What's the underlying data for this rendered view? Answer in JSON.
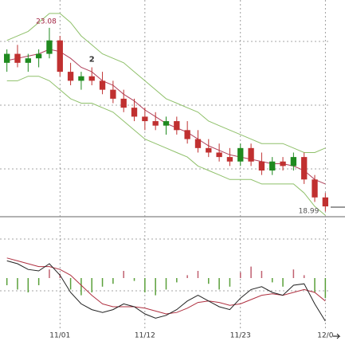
{
  "chart_data": [
    {
      "type": "candlestick",
      "categories": [
        null,
        null,
        null,
        null,
        null,
        "11/01",
        null,
        null,
        null,
        null,
        null,
        null,
        null,
        "11/12",
        null,
        null,
        null,
        null,
        null,
        null,
        null,
        null,
        "11/23",
        null,
        null,
        null,
        null,
        null,
        null,
        null,
        "12/0"
      ],
      "open": [
        22.3,
        22.5,
        22.3,
        22.4,
        22.5,
        22.8,
        22.1,
        21.9,
        22.0,
        21.9,
        21.7,
        21.5,
        21.3,
        21.1,
        21.0,
        20.9,
        21.0,
        20.8,
        20.6,
        20.4,
        20.3,
        20.2,
        20.1,
        20.4,
        20.1,
        19.9,
        20.1,
        20.0,
        20.2,
        19.7,
        19.3
      ],
      "high": [
        22.6,
        22.7,
        22.5,
        22.6,
        23.08,
        22.9,
        22.3,
        22.1,
        22.2,
        22.1,
        21.9,
        21.7,
        21.5,
        21.3,
        21.2,
        21.1,
        21.1,
        21.0,
        20.8,
        20.6,
        20.5,
        20.4,
        20.5,
        20.5,
        20.3,
        20.2,
        20.2,
        20.3,
        20.3,
        19.8,
        19.4
      ],
      "low": [
        22.1,
        22.2,
        22.1,
        22.2,
        22.4,
        22.0,
        21.8,
        21.7,
        21.8,
        21.6,
        21.4,
        21.2,
        21.0,
        20.8,
        20.8,
        20.7,
        20.7,
        20.5,
        20.3,
        20.2,
        20.1,
        20.0,
        20.0,
        20.0,
        19.8,
        19.8,
        19.9,
        19.9,
        19.6,
        19.2,
        18.99
      ],
      "close": [
        22.5,
        22.3,
        22.4,
        22.5,
        22.8,
        22.1,
        21.9,
        22.0,
        21.9,
        21.7,
        21.5,
        21.3,
        21.1,
        21.0,
        20.9,
        21.0,
        20.8,
        20.6,
        20.4,
        20.3,
        20.2,
        20.1,
        20.4,
        20.1,
        19.9,
        20.1,
        20.0,
        20.2,
        19.7,
        19.3,
        19.1
      ],
      "upper": [
        22.8,
        22.9,
        23.0,
        23.2,
        23.4,
        23.4,
        23.2,
        22.9,
        22.7,
        22.5,
        22.4,
        22.3,
        22.1,
        21.9,
        21.7,
        21.5,
        21.4,
        21.3,
        21.2,
        21.0,
        20.9,
        20.8,
        20.7,
        20.6,
        20.5,
        20.5,
        20.5,
        20.4,
        20.3,
        20.3,
        20.4
      ],
      "lower": [
        21.9,
        21.9,
        22.0,
        22.0,
        21.9,
        21.7,
        21.5,
        21.4,
        21.4,
        21.3,
        21.2,
        21.0,
        20.8,
        20.6,
        20.5,
        20.4,
        20.3,
        20.2,
        20.0,
        19.9,
        19.8,
        19.7,
        19.7,
        19.7,
        19.6,
        19.6,
        19.6,
        19.6,
        19.4,
        19.1,
        18.9
      ],
      "average": [
        22.35,
        22.4,
        22.45,
        22.5,
        22.6,
        22.55,
        22.4,
        22.2,
        22.1,
        21.9,
        21.8,
        21.6,
        21.45,
        21.25,
        21.1,
        20.95,
        20.85,
        20.75,
        20.6,
        20.45,
        20.35,
        20.25,
        20.2,
        20.15,
        20.1,
        20.05,
        20.05,
        20.0,
        19.9,
        19.7,
        19.6
      ],
      "annotation": "2",
      "up_color": "#1f8a1f",
      "down_color": "#c03030",
      "band_color": "#8fc06a",
      "average_color": "#b0405a",
      "ylim": [
        18.87,
        23.7
      ]
    },
    {
      "type": "macd",
      "histogram": [
        -0.05,
        -0.08,
        -0.1,
        -0.05,
        0.06,
        0.03,
        -0.08,
        -0.12,
        -0.1,
        -0.06,
        -0.04,
        0.05,
        -0.02,
        -0.1,
        -0.12,
        -0.08,
        -0.03,
        0.02,
        0.05,
        -0.04,
        -0.08,
        -0.06,
        0.04,
        0.08,
        0.05,
        -0.03,
        -0.06,
        0.06,
        0.02,
        -0.1,
        -0.14
      ],
      "macd": [
        0.12,
        0.1,
        0.06,
        0.05,
        0.1,
        0.02,
        -0.1,
        -0.18,
        -0.22,
        -0.24,
        -0.22,
        -0.18,
        -0.2,
        -0.25,
        -0.28,
        -0.26,
        -0.22,
        -0.16,
        -0.12,
        -0.16,
        -0.2,
        -0.22,
        -0.14,
        -0.08,
        -0.06,
        -0.1,
        -0.12,
        -0.05,
        -0.04,
        -0.18,
        -0.3
      ],
      "signal": [
        0.14,
        0.12,
        0.1,
        0.08,
        0.08,
        0.06,
        0.02,
        -0.05,
        -0.12,
        -0.18,
        -0.2,
        -0.2,
        -0.2,
        -0.21,
        -0.23,
        -0.25,
        -0.24,
        -0.21,
        -0.17,
        -0.16,
        -0.17,
        -0.19,
        -0.18,
        -0.15,
        -0.12,
        -0.11,
        -0.12,
        -0.1,
        -0.08,
        -0.1,
        -0.16
      ],
      "positive_color": "#c06070",
      "negative_color": "#5aa03a",
      "macd_color": "#222222",
      "signal_color": "#b03040",
      "ylim": [
        -0.35,
        0.3
      ]
    }
  ]
}
